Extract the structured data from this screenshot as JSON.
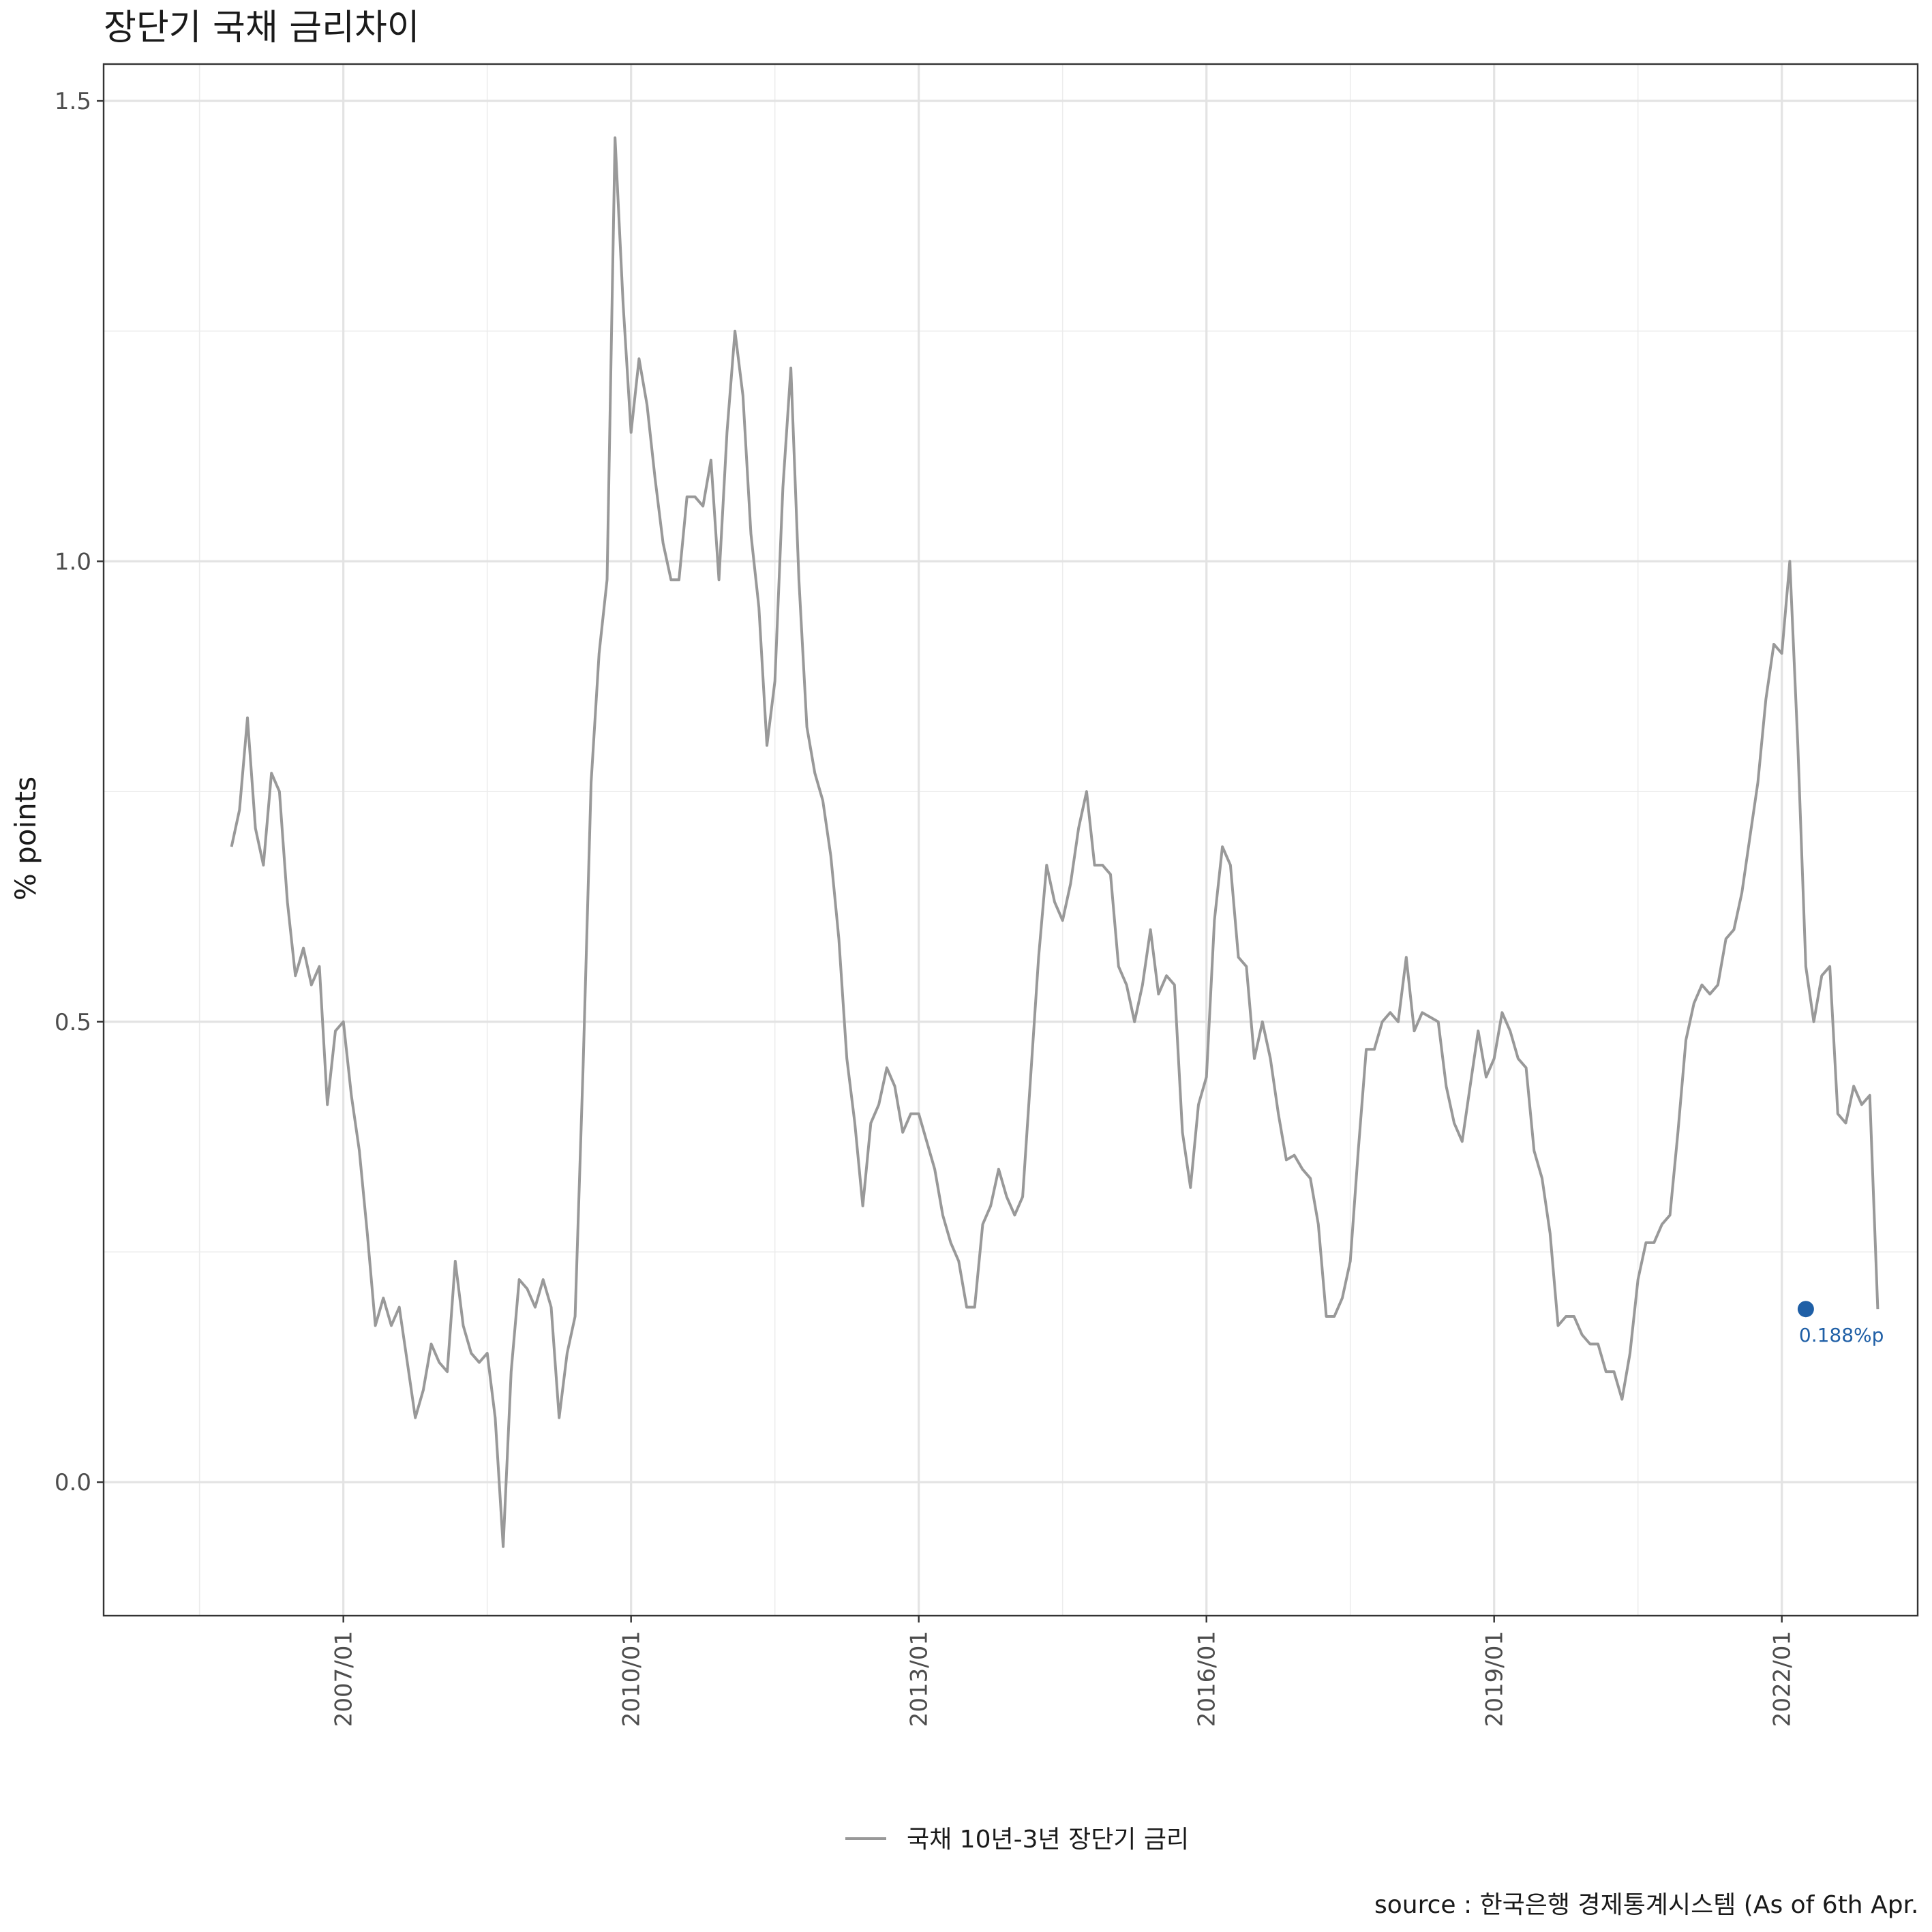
{
  "chart_data": {
    "type": "line",
    "title": "장단기 국채 금리차이",
    "xlabel": "",
    "ylabel": "% points",
    "ylim": [
      -0.145,
      1.54
    ],
    "xlim": [
      "2004-07-01",
      "2023-06-01"
    ],
    "x_ticks": [
      "2007/01",
      "2010/01",
      "2013/01",
      "2016/01",
      "2019/01",
      "2022/01"
    ],
    "y_ticks": [
      "0.0",
      "0.5",
      "1.0",
      "1.5"
    ],
    "grid": true,
    "legend_position": "bottom",
    "caption": "source : 한국은행 경제통계시스템 (As of 6th Apr.",
    "series": [
      {
        "name": "국채 10년-3년 장단기 금리",
        "color": "#999999",
        "start": "2005-11",
        "step": "month",
        "values": [
          0.69,
          0.73,
          0.83,
          0.71,
          0.67,
          0.77,
          0.75,
          0.63,
          0.55,
          0.58,
          0.54,
          0.56,
          0.41,
          0.49,
          0.5,
          0.42,
          0.36,
          0.27,
          0.17,
          0.2,
          0.17,
          0.19,
          0.13,
          0.07,
          0.1,
          0.15,
          0.13,
          0.12,
          0.24,
          0.17,
          0.14,
          0.13,
          0.14,
          0.07,
          -0.07,
          0.12,
          0.22,
          0.21,
          0.19,
          0.22,
          0.19,
          0.07,
          0.14,
          0.18,
          0.45,
          0.76,
          0.9,
          0.98,
          1.46,
          1.28,
          1.14,
          1.22,
          1.17,
          1.09,
          1.02,
          0.98,
          0.98,
          1.07,
          1.07,
          1.06,
          1.11,
          0.98,
          1.14,
          1.25,
          1.18,
          1.03,
          0.95,
          0.8,
          0.87,
          1.08,
          1.21,
          0.98,
          0.82,
          0.77,
          0.74,
          0.68,
          0.59,
          0.46,
          0.39,
          0.3,
          0.39,
          0.41,
          0.45,
          0.43,
          0.38,
          0.4,
          0.4,
          0.37,
          0.34,
          0.29,
          0.26,
          0.24,
          0.19,
          0.19,
          0.28,
          0.3,
          0.34,
          0.31,
          0.29,
          0.31,
          0.44,
          0.57,
          0.67,
          0.63,
          0.61,
          0.65,
          0.71,
          0.75,
          0.67,
          0.67,
          0.66,
          0.56,
          0.54,
          0.5,
          0.54,
          0.6,
          0.53,
          0.55,
          0.54,
          0.38,
          0.32,
          0.41,
          0.44,
          0.61,
          0.69,
          0.67,
          0.57,
          0.56,
          0.46,
          0.5,
          0.46,
          0.4,
          0.35,
          0.355,
          0.34,
          0.33,
          0.28,
          0.18,
          0.18,
          0.2,
          0.24,
          0.36,
          0.47,
          0.47,
          0.5,
          0.51,
          0.5,
          0.57,
          0.49,
          0.51,
          0.505,
          0.5,
          0.43,
          0.39,
          0.37,
          0.43,
          0.49,
          0.44,
          0.46,
          0.51,
          0.49,
          0.46,
          0.45,
          0.36,
          0.33,
          0.27,
          0.17,
          0.18,
          0.18,
          0.16,
          0.15,
          0.15,
          0.12,
          0.12,
          0.09,
          0.14,
          0.22,
          0.26,
          0.26,
          0.28,
          0.29,
          0.38,
          0.48,
          0.52,
          0.54,
          0.53,
          0.54,
          0.59,
          0.6,
          0.64,
          0.7,
          0.76,
          0.85,
          0.91,
          0.9,
          1.0,
          0.8,
          0.56,
          0.5,
          0.55,
          0.56,
          0.4,
          0.39,
          0.43,
          0.41,
          0.42,
          0.188
        ]
      }
    ],
    "annotations": [
      {
        "x": "2022-04",
        "y": 0.188,
        "label": "0.188%p",
        "color": "#1f5fa6"
      }
    ]
  }
}
